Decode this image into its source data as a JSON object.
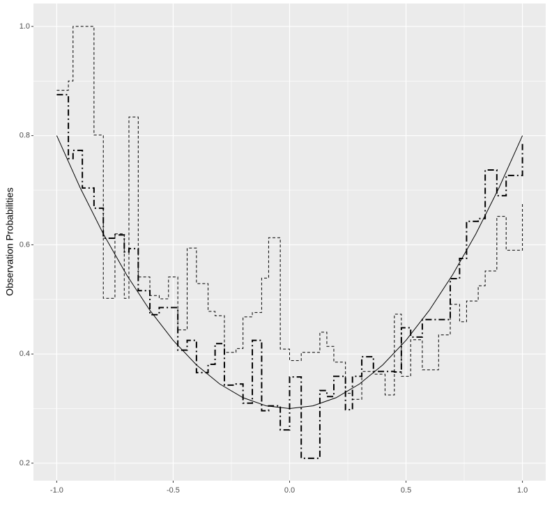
{
  "chart_data": {
    "type": "step",
    "y_label": "Observation Probabilities",
    "xlim": [
      -1.1,
      1.1
    ],
    "ylim": [
      0.168,
      1.042
    ],
    "xticks": [
      {
        "value": -1,
        "label": "-1.0"
      },
      -0.5,
      {
        "value": 0,
        "label": "0.0"
      },
      0.5,
      {
        "value": 1,
        "label": "1.0"
      }
    ],
    "yticks": [
      0.2,
      0.4,
      0.6,
      0.8,
      {
        "value": 1,
        "label": "1.0"
      }
    ],
    "grid": true,
    "x": [
      -1.0,
      -0.95,
      -0.93,
      -0.89,
      -0.84,
      -0.8,
      -0.75,
      -0.71,
      -0.69,
      -0.65,
      -0.6,
      -0.56,
      -0.52,
      -0.48,
      -0.44,
      -0.4,
      -0.35,
      -0.32,
      -0.28,
      -0.23,
      -0.2,
      -0.16,
      -0.12,
      -0.09,
      -0.04,
      0.0,
      0.05,
      0.13,
      0.16,
      0.19,
      0.24,
      0.27,
      0.31,
      0.36,
      0.41,
      0.45,
      0.48,
      0.52,
      0.57,
      0.64,
      0.69,
      0.73,
      0.76,
      0.81,
      0.84,
      0.89,
      0.93,
      1.0
    ],
    "series": [
      {
        "color": "#000000",
        "style": "dashdot",
        "values": [
          0.875,
          0.758,
          0.773,
          0.704,
          0.667,
          0.612,
          0.618,
          0.587,
          0.593,
          0.516,
          0.472,
          0.485,
          0.485,
          0.407,
          0.425,
          0.366,
          0.381,
          0.419,
          0.343,
          0.345,
          0.31,
          0.425,
          0.296,
          0.305,
          0.261,
          0.358,
          0.209,
          0.333,
          0.322,
          0.359,
          0.298,
          0.359,
          0.395,
          0.368,
          0.368,
          0.367,
          0.448,
          0.431,
          0.463,
          0.463,
          0.538,
          0.575,
          0.643,
          0.648,
          0.737,
          0.69,
          0.727,
          0.79
        ]
      },
      {
        "color": "#000000",
        "style": "dashed",
        "values": [
          0.883,
          0.9,
          1.0,
          1.0,
          0.801,
          0.502,
          0.62,
          0.502,
          0.834,
          0.541,
          0.507,
          0.501,
          0.541,
          0.444,
          0.594,
          0.529,
          0.478,
          0.47,
          0.403,
          0.41,
          0.468,
          0.476,
          0.539,
          0.613,
          0.409,
          0.388,
          0.403,
          0.44,
          0.414,
          0.385,
          0.328,
          0.317,
          0.368,
          0.363,
          0.325,
          0.473,
          0.359,
          0.426,
          0.371,
          0.435,
          0.491,
          0.459,
          0.497,
          0.525,
          0.552,
          0.652,
          0.59,
          0.678
        ]
      }
    ],
    "curve": {
      "color": "#000000",
      "x": [
        -1.0,
        -0.9,
        -0.8,
        -0.7,
        -0.6,
        -0.5,
        -0.4,
        -0.3,
        -0.2,
        -0.1,
        0.0,
        0.1,
        0.2,
        0.3,
        0.4,
        0.5,
        0.6,
        0.7,
        0.8,
        0.9,
        1.0
      ],
      "values": [
        0.8,
        0.705,
        0.62,
        0.545,
        0.48,
        0.425,
        0.38,
        0.345,
        0.32,
        0.305,
        0.3,
        0.305,
        0.32,
        0.345,
        0.38,
        0.425,
        0.48,
        0.545,
        0.62,
        0.705,
        0.8
      ]
    }
  }
}
